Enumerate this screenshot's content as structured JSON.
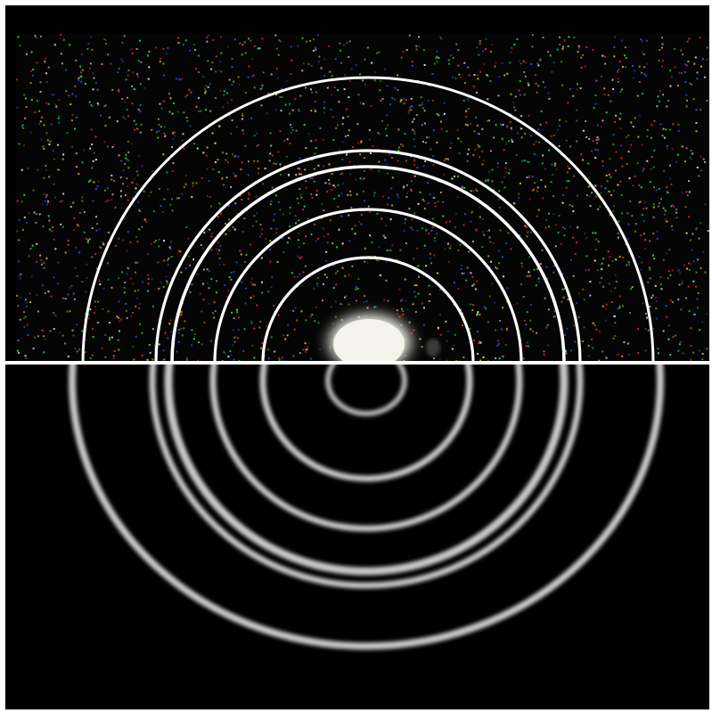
{
  "image": {
    "subject": "diffraction-ring-pattern",
    "background_color": "#000000",
    "ring_color": "#ffffff",
    "simulated_ring_color": "#c8c8c8",
    "noise_colors": [
      "#ff3030",
      "#30ff30",
      "#3060ff",
      "#ffffff",
      "#ffcc30"
    ]
  }
}
